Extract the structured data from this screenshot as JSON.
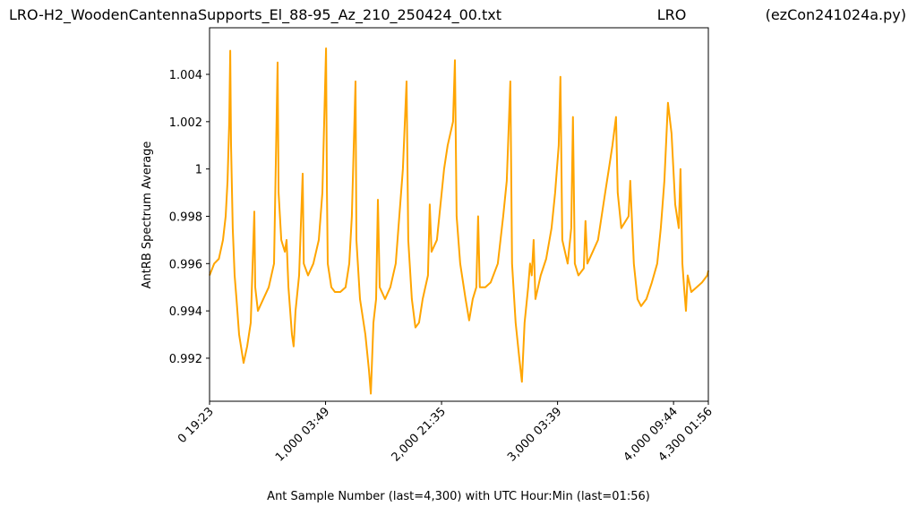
{
  "chart_data": {
    "type": "line",
    "title": [
      "LRO-H2_WoodenCantennaSupports_El_88-95_Az_210_250424_00.txt",
      "LRO",
      "(ezCon241024a.py)"
    ],
    "x_label": "Ant Sample Number (last=4,300) with UTC Hour:Min (last=01:56)",
    "y_label": "AntRB Spectrum Average",
    "xlim": [
      0,
      4300
    ],
    "ylim": [
      0.99018,
      1.00597
    ],
    "xticks": [
      {
        "value": 0,
        "label": "0  19:23"
      },
      {
        "value": 1000,
        "label": "1,000  03:49"
      },
      {
        "value": 2000,
        "label": "2,000  21:35"
      },
      {
        "value": 3000,
        "label": "3,000  03:39"
      },
      {
        "value": 4000,
        "label": "4,000  09:44"
      },
      {
        "value": 4300,
        "label": "4,300  01:56"
      }
    ],
    "yticks": [
      0.992,
      0.994,
      0.996,
      0.998,
      1.0,
      1.002,
      1.004
    ],
    "series": [
      {
        "color": "#ffa500",
        "x": [
          0,
          40,
          80,
          116,
          139,
          155,
          170,
          178,
          185,
          200,
          216,
          232,
          255,
          293,
          324,
          355,
          386,
          394,
          417,
          463,
          510,
          556,
          587,
          595,
          618,
          649,
          664,
          680,
          710,
          725,
          741,
          772,
          803,
          812,
          849,
          895,
          942,
          973,
          1004,
          1012,
          1019,
          1050,
          1081,
          1127,
          1173,
          1204,
          1227,
          1258,
          1266,
          1297,
          1343,
          1374,
          1390,
          1413,
          1436,
          1451,
          1467,
          1513,
          1559,
          1605,
          1636,
          1667,
          1698,
          1713,
          1744,
          1775,
          1806,
          1837,
          1883,
          1898,
          1914,
          1960,
          1991,
          2022,
          2053,
          2099,
          2115,
          2130,
          2161,
          2207,
          2238,
          2269,
          2300,
          2315,
          2330,
          2377,
          2423,
          2485,
          2531,
          2562,
          2593,
          2608,
          2639,
          2670,
          2693,
          2716,
          2747,
          2763,
          2778,
          2794,
          2809,
          2855,
          2902,
          2948,
          2979,
          3010,
          3025,
          3041,
          3087,
          3118,
          3133,
          3149,
          3180,
          3226,
          3241,
          3257,
          3303,
          3349,
          3380,
          3411,
          3442,
          3473,
          3504,
          3519,
          3550,
          3612,
          3627,
          3658,
          3689,
          3720,
          3766,
          3813,
          3859,
          3890,
          3921,
          3952,
          3983,
          4014,
          4045,
          4060,
          4076,
          4091,
          4107,
          4122,
          4153,
          4199,
          4245,
          4291,
          4300
        ],
        "values": [
          0.9955,
          0.996,
          0.9962,
          0.997,
          0.998,
          0.9995,
          1.002,
          1.005,
          1.001,
          0.9975,
          0.9955,
          0.9945,
          0.993,
          0.9918,
          0.9925,
          0.9935,
          0.9982,
          0.995,
          0.994,
          0.9945,
          0.995,
          0.996,
          1.0045,
          0.999,
          0.997,
          0.9965,
          0.997,
          0.995,
          0.993,
          0.9925,
          0.994,
          0.9955,
          0.9998,
          0.996,
          0.9955,
          0.996,
          0.997,
          0.999,
          1.0051,
          0.999,
          0.996,
          0.995,
          0.9948,
          0.9948,
          0.995,
          0.996,
          0.998,
          1.0037,
          0.997,
          0.9945,
          0.993,
          0.9915,
          0.9905,
          0.9935,
          0.9945,
          0.9987,
          0.995,
          0.9945,
          0.995,
          0.996,
          0.998,
          1.0,
          1.0037,
          0.997,
          0.9945,
          0.9933,
          0.9935,
          0.9945,
          0.9955,
          0.9985,
          0.9965,
          0.997,
          0.9985,
          1.0,
          1.001,
          1.002,
          1.0046,
          0.998,
          0.996,
          0.9945,
          0.9936,
          0.9945,
          0.995,
          0.998,
          0.995,
          0.995,
          0.9952,
          0.996,
          0.998,
          0.9995,
          1.0037,
          0.996,
          0.9935,
          0.992,
          0.991,
          0.9935,
          0.995,
          0.996,
          0.9955,
          0.997,
          0.9945,
          0.9955,
          0.9962,
          0.9975,
          0.999,
          1.001,
          1.0039,
          0.997,
          0.996,
          0.9975,
          1.0022,
          0.996,
          0.9955,
          0.9958,
          0.9978,
          0.996,
          0.9965,
          0.997,
          0.998,
          0.999,
          1.0,
          1.001,
          1.0022,
          0.999,
          0.9975,
          0.998,
          0.9995,
          0.996,
          0.9945,
          0.9942,
          0.9945,
          0.9952,
          0.996,
          0.9975,
          0.9995,
          1.0028,
          1.0015,
          0.9985,
          0.9975,
          1.0,
          0.996,
          0.995,
          0.994,
          0.9955,
          0.9948,
          0.995,
          0.9952,
          0.9955,
          0.9957
        ]
      }
    ]
  }
}
